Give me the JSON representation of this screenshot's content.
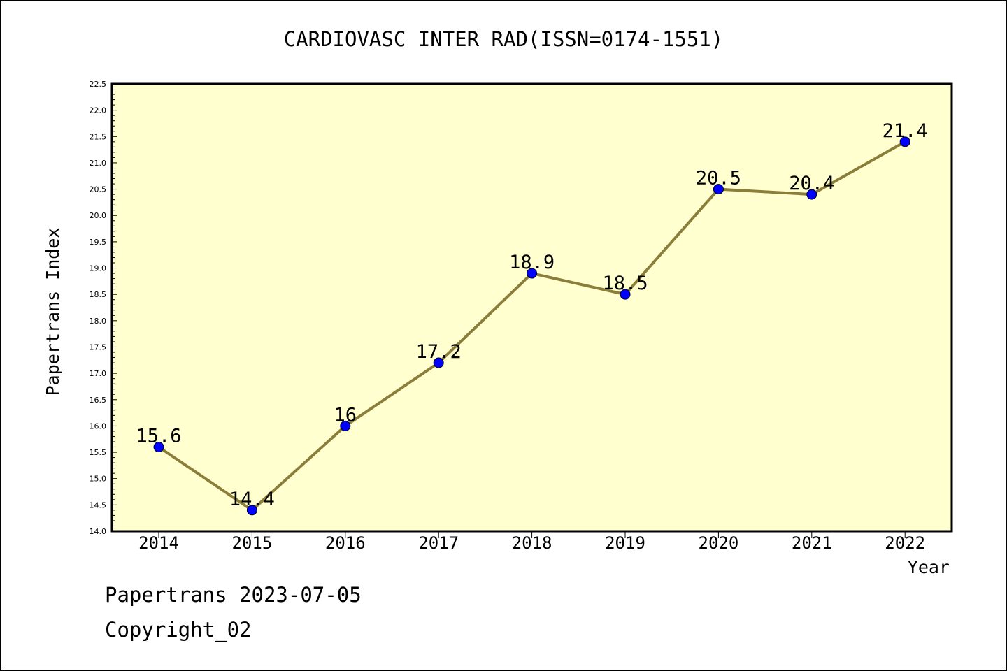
{
  "chart_data": {
    "type": "line",
    "title": "CARDIOVASC INTER RAD(ISSN=0174-1551)",
    "xlabel": "Year",
    "ylabel": "Papertrans Index",
    "categories": [
      "2014",
      "2015",
      "2016",
      "2017",
      "2018",
      "2019",
      "2020",
      "2021",
      "2022"
    ],
    "series": [
      {
        "values": [
          15.6,
          14.4,
          16,
          17.2,
          18.9,
          18.5,
          20.5,
          20.4,
          21.4
        ],
        "labels": [
          "15.6",
          "14.4",
          "16",
          "17.2",
          "18.9",
          "18.5",
          "20.5",
          "20.4",
          "21.4"
        ]
      }
    ],
    "ylim": [
      14.0,
      22.5
    ],
    "yticks": [
      "14.0",
      "14.5",
      "15.0",
      "15.5",
      "16.0",
      "16.5",
      "17.0",
      "17.5",
      "18.0",
      "18.5",
      "19.0",
      "19.5",
      "20.0",
      "20.5",
      "21.0",
      "21.5",
      "22.0",
      "22.5"
    ],
    "grid": false,
    "colors": {
      "plot_background": "#ffffd0",
      "line": "#8b7d3a",
      "marker": "#0000ff"
    }
  },
  "footer": {
    "line1": "Papertrans 2023-07-05",
    "line2": "Copyright_02"
  }
}
